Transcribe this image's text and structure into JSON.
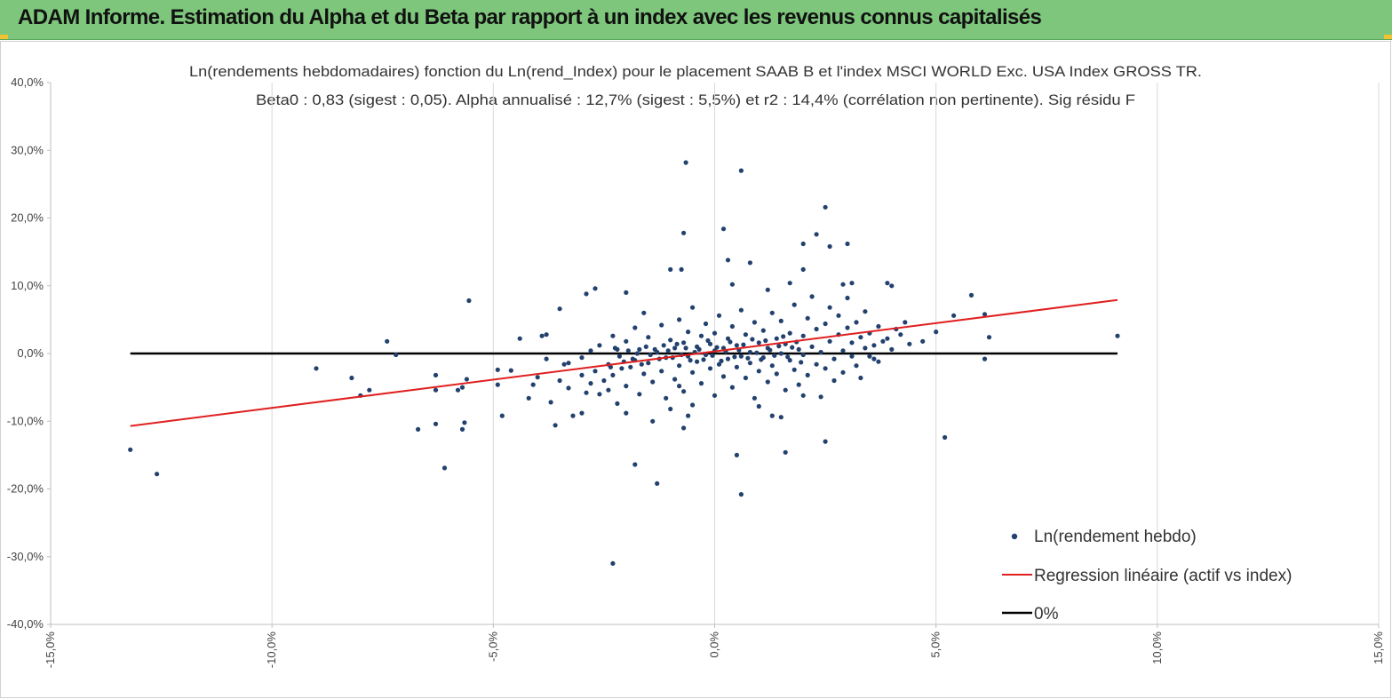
{
  "header": {
    "title": "ADAM Informe. Estimation du Alpha et du Beta par rapport à un index avec les revenus connus capitalisés",
    "accent_color": "#7dc67b"
  },
  "chart_data": {
    "type": "scatter",
    "title_line1": "Ln(rendements hebdomadaires) fonction du Ln(rend_Index) pour le placement SAAB B et l'index MSCI WORLD Exc. USA Index GROSS TR.",
    "title_line2": "Beta0 : 0,83  (sigest : 0,05). Alpha annualisé : 12,7% (sigest :  5,5%) et r2 : 14,4% (corrélation non pertinente). Sig résidu F",
    "xlim": [
      -15,
      15
    ],
    "ylim": [
      -40,
      40
    ],
    "x_ticks": [
      "-15,0%",
      "-10,0%",
      "-5,0%",
      "0,0%",
      "5,0%",
      "10,0%",
      "15,0%"
    ],
    "y_ticks": [
      "40,0%",
      "30,0%",
      "20,0%",
      "10,0%",
      "0,0%",
      "-10,0%",
      "-20,0%",
      "-30,0%",
      "-40,0%"
    ],
    "grid": "vertical",
    "legend_position": "bottom-right",
    "series": [
      {
        "name": "Ln(rendement hebdo)",
        "kind": "scatter",
        "color": "#23416e",
        "points": [
          [
            -13.2,
            -14.2
          ],
          [
            -12.6,
            -17.8
          ],
          [
            -9.0,
            -2.2
          ],
          [
            -8.2,
            -3.6
          ],
          [
            -8.0,
            -6.2
          ],
          [
            -7.8,
            -5.4
          ],
          [
            -7.4,
            1.8
          ],
          [
            -7.2,
            -0.2
          ],
          [
            -6.7,
            -11.2
          ],
          [
            -6.3,
            -3.2
          ],
          [
            -6.3,
            -5.4
          ],
          [
            -6.3,
            -10.4
          ],
          [
            -6.1,
            -16.9
          ],
          [
            -5.8,
            -5.4
          ],
          [
            -5.7,
            -11.2
          ],
          [
            -5.65,
            -10.2
          ],
          [
            -5.6,
            -3.8
          ],
          [
            -5.55,
            7.8
          ],
          [
            -5.7,
            -5.0
          ],
          [
            -4.9,
            -2.4
          ],
          [
            -4.8,
            -9.2
          ],
          [
            -4.9,
            -4.6
          ],
          [
            -4.4,
            2.2
          ],
          [
            -4.2,
            -6.6
          ],
          [
            -4.1,
            -4.6
          ],
          [
            -3.9,
            2.6
          ],
          [
            -3.8,
            2.8
          ],
          [
            -3.5,
            6.6
          ],
          [
            -3.5,
            -4.0
          ],
          [
            -3.6,
            -10.6
          ],
          [
            -3.3,
            -1.4
          ],
          [
            -3.2,
            -9.2
          ],
          [
            -3.0,
            -8.8
          ],
          [
            -2.9,
            8.8
          ],
          [
            -2.8,
            -4.4
          ],
          [
            -2.7,
            9.6
          ],
          [
            -2.6,
            -6.0
          ],
          [
            -2.4,
            -5.4
          ],
          [
            -2.3,
            2.6
          ],
          [
            -2.2,
            -7.4
          ],
          [
            -2.0,
            9.0
          ],
          [
            -2.0,
            -8.8
          ],
          [
            -2.3,
            -31.0
          ],
          [
            -1.8,
            -16.4
          ],
          [
            -1.6,
            6.0
          ],
          [
            -1.4,
            -10.0
          ],
          [
            -1.3,
            -19.2
          ],
          [
            -1.0,
            12.4
          ],
          [
            -1.1,
            -6.6
          ],
          [
            -0.8,
            -4.8
          ],
          [
            -0.75,
            12.4
          ],
          [
            -0.7,
            -11.0
          ],
          [
            -0.7,
            17.8
          ],
          [
            -0.65,
            28.2
          ],
          [
            -0.6,
            -9.2
          ],
          [
            -0.5,
            -7.6
          ],
          [
            0.2,
            18.4
          ],
          [
            0.3,
            13.8
          ],
          [
            0.4,
            10.2
          ],
          [
            0.5,
            -15.0
          ],
          [
            0.6,
            27.0
          ],
          [
            0.6,
            -20.8
          ],
          [
            0.8,
            13.4
          ],
          [
            1.0,
            -7.8
          ],
          [
            1.2,
            9.4
          ],
          [
            1.3,
            -9.2
          ],
          [
            1.5,
            -9.4
          ],
          [
            1.6,
            -14.6
          ],
          [
            1.7,
            10.4
          ],
          [
            2.0,
            12.4
          ],
          [
            2.0,
            -6.2
          ],
          [
            2.0,
            16.2
          ],
          [
            2.3,
            17.6
          ],
          [
            2.5,
            -13.0
          ],
          [
            2.5,
            21.6
          ],
          [
            2.6,
            15.8
          ],
          [
            2.9,
            10.2
          ],
          [
            3.0,
            16.2
          ],
          [
            3.1,
            10.4
          ],
          [
            3.2,
            -1.8
          ],
          [
            3.5,
            -0.4
          ],
          [
            3.6,
            -0.8
          ],
          [
            3.8,
            1.8
          ],
          [
            3.9,
            10.4
          ],
          [
            4.0,
            10.0
          ],
          [
            4.2,
            2.8
          ],
          [
            4.3,
            4.6
          ],
          [
            4.7,
            1.8
          ],
          [
            5.0,
            3.2
          ],
          [
            5.2,
            -12.4
          ],
          [
            5.4,
            5.6
          ],
          [
            5.8,
            8.6
          ],
          [
            6.1,
            5.8
          ],
          [
            6.1,
            -0.8
          ],
          [
            6.2,
            2.4
          ],
          [
            9.1,
            2.6
          ],
          [
            -4.6,
            -2.5
          ],
          [
            -4.0,
            -3.5
          ],
          [
            -3.8,
            -0.8
          ],
          [
            -3.7,
            -7.2
          ],
          [
            -3.4,
            -1.6
          ],
          [
            -3.3,
            -5.1
          ],
          [
            -3.0,
            -0.6
          ],
          [
            -3.0,
            -3.2
          ],
          [
            -2.9,
            -5.8
          ],
          [
            -2.8,
            0.4
          ],
          [
            -2.7,
            -2.6
          ],
          [
            -2.6,
            1.2
          ],
          [
            -2.5,
            -4.0
          ],
          [
            -2.4,
            -1.6
          ],
          [
            -2.3,
            -3.2
          ],
          [
            -2.2,
            0.6
          ],
          [
            -2.1,
            -2.2
          ],
          [
            -2.0,
            -4.8
          ],
          [
            -2.0,
            1.8
          ],
          [
            -1.9,
            -2.0
          ],
          [
            -1.8,
            -1.0
          ],
          [
            -1.8,
            3.8
          ],
          [
            -1.7,
            -6.0
          ],
          [
            -1.7,
            0.6
          ],
          [
            -1.6,
            -3.0
          ],
          [
            -1.5,
            2.4
          ],
          [
            -1.5,
            -1.4
          ],
          [
            -1.4,
            -4.2
          ],
          [
            -1.3,
            0.2
          ],
          [
            -1.2,
            4.2
          ],
          [
            -1.2,
            -2.6
          ],
          [
            -1.1,
            -0.6
          ],
          [
            -1.0,
            -8.2
          ],
          [
            -1.0,
            2.0
          ],
          [
            -0.9,
            -3.8
          ],
          [
            -0.9,
            0.8
          ],
          [
            -0.8,
            5.0
          ],
          [
            -0.8,
            -1.8
          ],
          [
            -0.7,
            -5.6
          ],
          [
            -0.7,
            1.6
          ],
          [
            -0.6,
            -0.4
          ],
          [
            -0.6,
            3.2
          ],
          [
            -0.5,
            -2.8
          ],
          [
            -0.5,
            6.8
          ],
          [
            -0.4,
            -1.2
          ],
          [
            -0.4,
            1.0
          ],
          [
            -0.3,
            -4.4
          ],
          [
            -0.3,
            2.6
          ],
          [
            -0.2,
            -0.2
          ],
          [
            -0.2,
            4.4
          ],
          [
            -0.1,
            -2.2
          ],
          [
            -0.1,
            1.4
          ],
          [
            0.0,
            -6.2
          ],
          [
            0.0,
            0.4
          ],
          [
            0.0,
            3.0
          ],
          [
            0.1,
            -1.6
          ],
          [
            0.1,
            5.6
          ],
          [
            0.2,
            -3.4
          ],
          [
            0.2,
            0.8
          ],
          [
            0.3,
            -0.8
          ],
          [
            0.3,
            2.2
          ],
          [
            0.4,
            -5.0
          ],
          [
            0.4,
            4.0
          ],
          [
            0.5,
            -2.0
          ],
          [
            0.5,
            1.2
          ],
          [
            0.6,
            -0.4
          ],
          [
            0.6,
            6.4
          ],
          [
            0.7,
            -3.6
          ],
          [
            0.7,
            2.8
          ],
          [
            0.8,
            0.2
          ],
          [
            0.8,
            -1.4
          ],
          [
            0.9,
            4.6
          ],
          [
            0.9,
            -6.6
          ],
          [
            1.0,
            1.6
          ],
          [
            1.0,
            -2.6
          ],
          [
            1.1,
            3.4
          ],
          [
            1.1,
            -0.6
          ],
          [
            1.2,
            -4.2
          ],
          [
            1.2,
            0.8
          ],
          [
            1.3,
            6.0
          ],
          [
            1.3,
            -1.8
          ],
          [
            1.4,
            2.2
          ],
          [
            1.4,
            -3.0
          ],
          [
            1.5,
            0.0
          ],
          [
            1.5,
            4.8
          ],
          [
            1.6,
            -5.4
          ],
          [
            1.6,
            1.4
          ],
          [
            1.7,
            -1.0
          ],
          [
            1.7,
            3.0
          ],
          [
            1.8,
            -2.4
          ],
          [
            1.8,
            7.2
          ],
          [
            1.9,
            0.6
          ],
          [
            1.9,
            -4.6
          ],
          [
            2.0,
            2.6
          ],
          [
            2.0,
            -0.2
          ],
          [
            2.1,
            5.2
          ],
          [
            2.1,
            -3.2
          ],
          [
            2.2,
            1.0
          ],
          [
            2.2,
            8.4
          ],
          [
            2.3,
            -1.6
          ],
          [
            2.3,
            3.6
          ],
          [
            2.4,
            -6.4
          ],
          [
            2.4,
            0.2
          ],
          [
            2.5,
            4.4
          ],
          [
            2.5,
            -2.2
          ],
          [
            2.6,
            1.8
          ],
          [
            2.6,
            6.8
          ],
          [
            2.7,
            -0.8
          ],
          [
            2.7,
            -4.0
          ],
          [
            2.8,
            2.8
          ],
          [
            2.8,
            5.6
          ],
          [
            2.9,
            0.4
          ],
          [
            2.9,
            -2.8
          ],
          [
            3.0,
            3.8
          ],
          [
            3.0,
            8.2
          ],
          [
            3.1,
            -0.4
          ],
          [
            3.1,
            1.6
          ],
          [
            3.2,
            4.6
          ],
          [
            3.3,
            2.4
          ],
          [
            3.3,
            -3.6
          ],
          [
            3.4,
            0.8
          ],
          [
            3.4,
            6.2
          ],
          [
            3.5,
            3.0
          ],
          [
            3.6,
            1.2
          ],
          [
            3.7,
            4.0
          ],
          [
            3.7,
            -1.2
          ],
          [
            3.9,
            2.2
          ],
          [
            4.0,
            0.6
          ],
          [
            4.1,
            3.6
          ],
          [
            4.4,
            1.4
          ],
          [
            -0.35,
            0.6
          ],
          [
            -0.25,
            -0.9
          ],
          [
            -0.15,
            1.9
          ],
          [
            -0.05,
            -0.3
          ],
          [
            0.05,
            0.9
          ],
          [
            0.15,
            -1.1
          ],
          [
            0.25,
            0.3
          ],
          [
            0.35,
            1.7
          ],
          [
            0.45,
            -0.5
          ],
          [
            0.55,
            0.5
          ],
          [
            0.65,
            1.3
          ],
          [
            0.75,
            -0.7
          ],
          [
            0.85,
            2.1
          ],
          [
            0.95,
            0.1
          ],
          [
            1.05,
            -0.9
          ],
          [
            1.15,
            1.9
          ],
          [
            1.25,
            0.5
          ],
          [
            1.35,
            -0.3
          ],
          [
            1.45,
            1.1
          ],
          [
            1.55,
            2.5
          ],
          [
            1.65,
            -0.5
          ],
          [
            1.75,
            0.9
          ],
          [
            1.85,
            1.7
          ],
          [
            1.95,
            -1.3
          ],
          [
            -0.45,
            0.2
          ],
          [
            -0.55,
            -1.0
          ],
          [
            -0.65,
            0.8
          ],
          [
            -0.75,
            -0.2
          ],
          [
            -0.85,
            1.4
          ],
          [
            -0.95,
            -0.6
          ],
          [
            -1.05,
            0.4
          ],
          [
            -1.15,
            1.2
          ],
          [
            -1.25,
            -0.8
          ],
          [
            -1.35,
            0.6
          ],
          [
            -1.45,
            -0.2
          ],
          [
            -1.55,
            1.0
          ],
          [
            -1.65,
            -1.6
          ],
          [
            -1.75,
            0.0
          ],
          [
            -1.85,
            -0.8
          ],
          [
            -1.95,
            0.4
          ],
          [
            -2.05,
            -1.2
          ],
          [
            -2.15,
            -0.4
          ],
          [
            -2.25,
            0.8
          ],
          [
            -2.35,
            -2.0
          ]
        ]
      },
      {
        "name": "Regression linéaire (actif vs index)",
        "kind": "line",
        "color": "#e02020",
        "x": [
          -13.2,
          9.1
        ],
        "y": [
          -10.7,
          7.9
        ]
      },
      {
        "name": "0%",
        "kind": "line",
        "color": "#000000",
        "x": [
          -13.2,
          9.1
        ],
        "y": [
          0,
          0
        ]
      }
    ]
  }
}
